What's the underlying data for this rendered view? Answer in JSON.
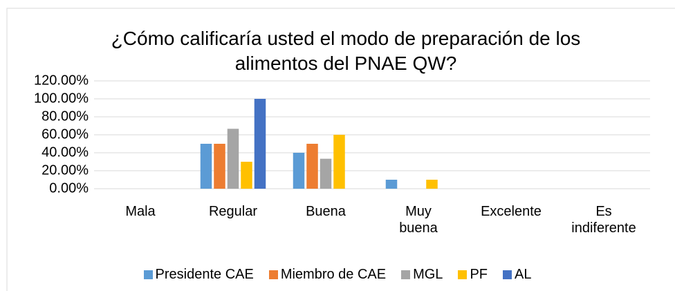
{
  "chart_data": {
    "type": "bar",
    "title": "¿Cómo calificaría usted el modo de preparación de los alimentos del PNAE QW?",
    "categories": [
      "Mala",
      "Regular",
      "Buena",
      "Muy buena",
      "Excelente",
      "Es indiferente"
    ],
    "series": [
      {
        "name": "Presidente CAE",
        "color": "#5b9bd5",
        "values": [
          0,
          50,
          40,
          10,
          0,
          0
        ]
      },
      {
        "name": "Miembro de CAE",
        "color": "#ed7d31",
        "values": [
          0,
          50,
          50,
          0,
          0,
          0
        ]
      },
      {
        "name": "MGL",
        "color": "#a5a5a5",
        "values": [
          0,
          66.67,
          33.33,
          0,
          0,
          0
        ]
      },
      {
        "name": "PF",
        "color": "#ffc000",
        "values": [
          0,
          30,
          60,
          10,
          0,
          0
        ]
      },
      {
        "name": "AL",
        "color": "#4472c4",
        "values": [
          0,
          100,
          0,
          0,
          0,
          0
        ]
      }
    ],
    "ylim": [
      0,
      120
    ],
    "yticks": [
      {
        "value": 0,
        "label": "0.00%"
      },
      {
        "value": 20,
        "label": "20.00%"
      },
      {
        "value": 40,
        "label": "40.00%"
      },
      {
        "value": 60,
        "label": "60.00%"
      },
      {
        "value": 80,
        "label": "80.00%"
      },
      {
        "value": 100,
        "label": "100.00%"
      },
      {
        "value": 120,
        "label": "120.00%"
      }
    ],
    "grid": true,
    "legend": "bottom"
  }
}
